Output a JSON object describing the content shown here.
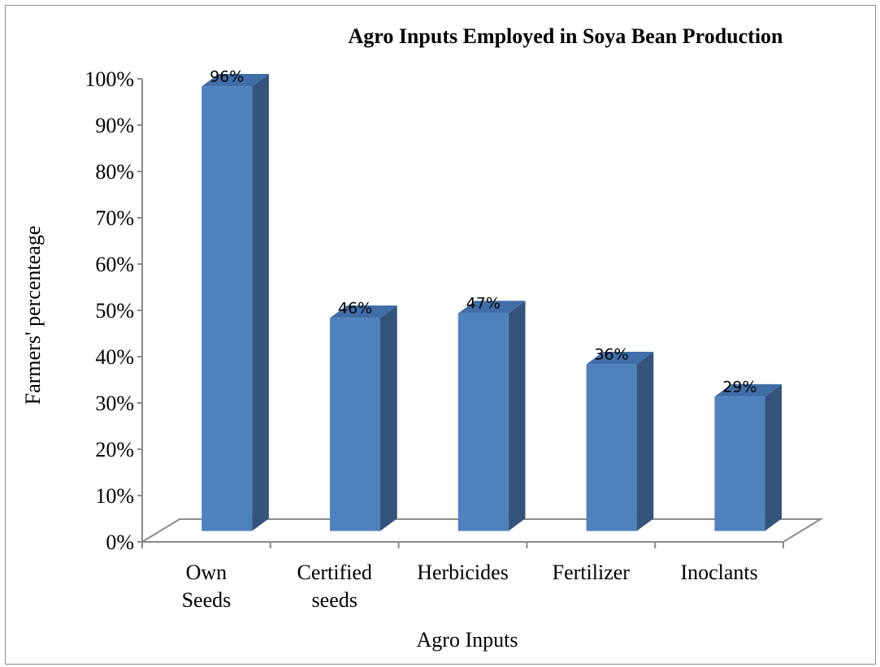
{
  "chart_data": {
    "type": "bar",
    "title": "Agro Inputs Employed in Soya Bean Production",
    "xlabel": "Agro Inputs",
    "ylabel": "Farmers' percenteage",
    "categories": [
      [
        "Own",
        "Seeds"
      ],
      [
        "Certified",
        "seeds"
      ],
      [
        "Herbicides"
      ],
      [
        "Fertilizer"
      ],
      [
        "Inoclants"
      ]
    ],
    "values": [
      96,
      46,
      47,
      36,
      29
    ],
    "data_labels": [
      "96%",
      "46%",
      "47%",
      "36%",
      "29%"
    ],
    "yticks": [
      "0%",
      "10%",
      "20%",
      "30%",
      "40%",
      "50%",
      "60%",
      "70%",
      "80%",
      "90%",
      "100%"
    ],
    "ylim": [
      0,
      100
    ],
    "style": "3d-column",
    "grid": false,
    "legend": "none",
    "colors": {
      "bar_front": "#4f81bd",
      "bar_side": "#34547c",
      "bar_top": "#3f6ea8",
      "floor": "#8c8c8c"
    }
  }
}
